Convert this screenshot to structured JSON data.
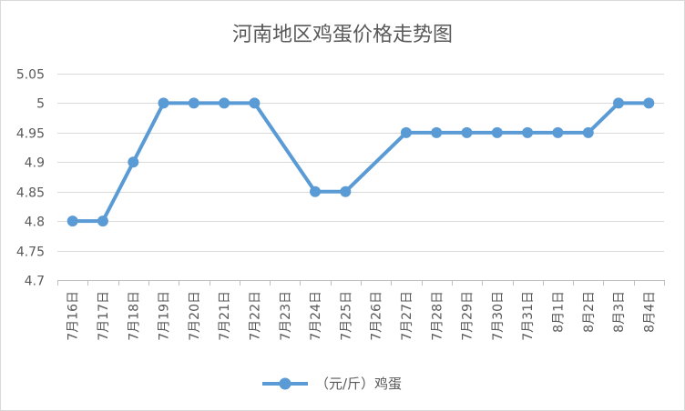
{
  "chart_data": {
    "type": "line",
    "title": "河南地区鸡蛋价格走势图",
    "xlabel": "",
    "ylabel": "",
    "categories": [
      "7月16日",
      "7月17日",
      "7月18日",
      "7月19日",
      "7月20日",
      "7月21日",
      "7月22日",
      "7月23日",
      "7月24日",
      "7月25日",
      "7月26日",
      "7月27日",
      "7月28日",
      "7月29日",
      "7月30日",
      "7月31日",
      "8月1日",
      "8月2日",
      "8月3日",
      "8月4日"
    ],
    "series": [
      {
        "name": "（元/斤）鸡蛋",
        "values": [
          4.8,
          4.8,
          4.9,
          5,
          5,
          5,
          5,
          null,
          4.85,
          4.85,
          null,
          4.95,
          4.95,
          4.95,
          4.95,
          4.95,
          4.95,
          4.95,
          5,
          5
        ],
        "color": "#5b9bd5"
      }
    ],
    "ylim": [
      4.7,
      5.05
    ],
    "yticks": [
      "4.7",
      "4.75",
      "4.8",
      "4.85",
      "4.9",
      "4.95",
      "5",
      "5.05"
    ],
    "grid": true,
    "legend": "bottom"
  },
  "colors": {
    "series": "#5b9bd5",
    "grid": "#d9d9d9",
    "text": "#595959"
  }
}
